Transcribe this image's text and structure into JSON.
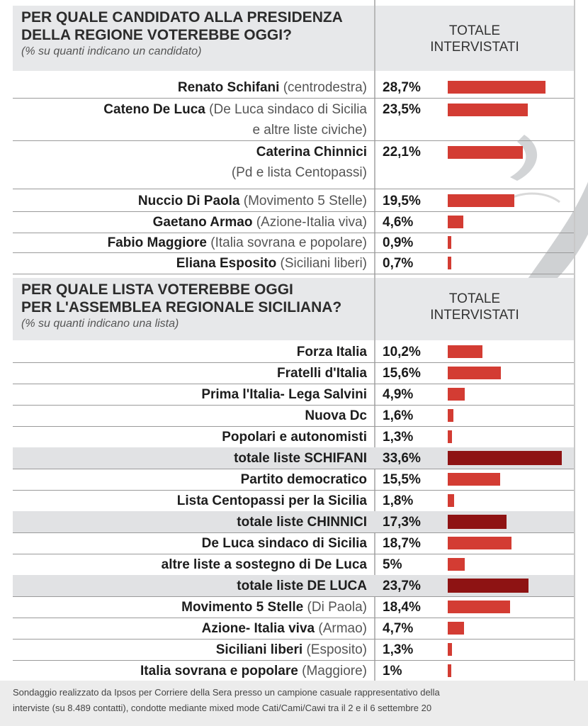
{
  "section1": {
    "title_line1": "PER QUALE CANDIDATO ALLA PRESIDENZA",
    "title_line2": "DELLA REGIONE VOTEREBBE OGGI?",
    "subtitle": "(% su quanti indicano un candidato)",
    "col_line1": "TOTALE",
    "col_line2": "INTERVISTATI"
  },
  "section2": {
    "title_line1": "PER QUALE LISTA VOTEREBBE OGGI",
    "title_line2": "PER L'ASSEMBLEA REGIONALE SICILIANA?",
    "subtitle": "(% su quanti indicano una lista)",
    "col_line1": "TOTALE",
    "col_line2": "INTERVISTATI"
  },
  "footer": {
    "line1": "Sondaggio realizzato da Ipsos per Corriere della Sera presso un campione casuale  rappresentativo della",
    "line2": "interviste (su 8.489 contatti), condotte mediante mixed mode Cati/Cami/Cawi tra il 2 e il 6 settembre 20"
  },
  "chart_data": [
    {
      "type": "bar",
      "orientation": "horizontal",
      "title": "PER QUALE CANDIDATO ALLA PRESIDENZA DELLA REGIONE VOTEREBBE OGGI?",
      "subtitle": "(% su quanti indicano un candidato)",
      "column_header": "TOTALE INTERVISTATI",
      "unit": "%",
      "rows": [
        {
          "name": "Renato Schifani",
          "note": "(centrodestra)",
          "value": 28.7,
          "label": "28,7%"
        },
        {
          "name": "Cateno De Luca",
          "note": "(De Luca sindaco di Sicilia",
          "note2": "e altre liste civiche)",
          "value": 23.5,
          "label": "23,5%"
        },
        {
          "name": "Caterina Chinnici",
          "note": "",
          "note2": "(Pd e lista Centopassi)",
          "value": 22.1,
          "label": "22,1%"
        },
        {
          "name": "Nuccio Di Paola",
          "note": "(Movimento 5 Stelle)",
          "value": 19.5,
          "label": "19,5%"
        },
        {
          "name": "Gaetano Armao",
          "note": "(Azione-Italia viva)",
          "value": 4.6,
          "label": "4,6%"
        },
        {
          "name": "Fabio Maggiore",
          "note": "(Italia sovrana e popolare)",
          "value": 0.9,
          "label": "0,9%"
        },
        {
          "name": "Eliana Esposito",
          "note": "(Siciliani liberi)",
          "value": 0.7,
          "label": "0,7%"
        }
      ],
      "colors": {
        "bar": "#d33c33"
      }
    },
    {
      "type": "bar",
      "orientation": "horizontal",
      "title": "PER QUALE LISTA VOTEREBBE OGGI PER L'ASSEMBLEA REGIONALE SICILIANA?",
      "subtitle": "(% su quanti indicano una lista)",
      "column_header": "TOTALE INTERVISTATI",
      "unit": "%",
      "rows": [
        {
          "name": "Forza Italia",
          "note": "",
          "value": 10.2,
          "label": "10,2%"
        },
        {
          "name": "Fratelli d'Italia",
          "note": "",
          "value": 15.6,
          "label": "15,6%"
        },
        {
          "name": "Prima l'Italia- Lega Salvini",
          "note": "",
          "value": 4.9,
          "label": "4,9%"
        },
        {
          "name": "Nuova Dc",
          "note": "",
          "value": 1.6,
          "label": "1,6%"
        },
        {
          "name": "Popolari e autonomisti",
          "note": "",
          "value": 1.3,
          "label": "1,3%"
        },
        {
          "name": "totale liste SCHIFANI",
          "note": "",
          "value": 33.6,
          "label": "33,6%",
          "total": true
        },
        {
          "name": "Partito democratico",
          "note": "",
          "value": 15.5,
          "label": "15,5%"
        },
        {
          "name": "Lista Centopassi per la Sicilia",
          "note": "",
          "value": 1.8,
          "label": "1,8%"
        },
        {
          "name": "totale liste CHINNICI",
          "note": "",
          "value": 17.3,
          "label": "17,3%",
          "total": true
        },
        {
          "name": "De Luca sindaco di Sicilia",
          "note": "",
          "value": 18.7,
          "label": "18,7%"
        },
        {
          "name": "altre liste a sostegno di De Luca",
          "note": "",
          "value": 5,
          "label": "5%"
        },
        {
          "name": "totale liste DE LUCA",
          "note": "",
          "value": 23.7,
          "label": "23,7%",
          "total": true
        },
        {
          "name": "Movimento 5 Stelle",
          "note": "(Di Paola)",
          "value": 18.4,
          "label": "18,4%"
        },
        {
          "name": "Azione- Italia viva",
          "note": "(Armao)",
          "value": 4.7,
          "label": "4,7%"
        },
        {
          "name": "Siciliani liberi",
          "note": "(Esposito)",
          "value": 1.3,
          "label": "1,3%"
        },
        {
          "name": "Italia sovrana e popolare",
          "note": "(Maggiore)",
          "value": 1,
          "label": "1%"
        }
      ],
      "colors": {
        "bar": "#d33c33",
        "total_bar": "#8e1313"
      }
    }
  ]
}
